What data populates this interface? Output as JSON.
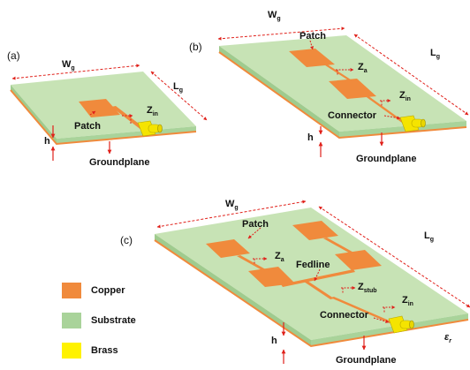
{
  "panels": {
    "a": {
      "label": "(a)",
      "wg": "W",
      "lg": "L",
      "g": "g",
      "patch": "Patch",
      "z_in": "Z",
      "in": "in",
      "h": "h",
      "groundplane": "Groundplane"
    },
    "b": {
      "label": "(b)",
      "wg": "W",
      "lg": "L",
      "g": "g",
      "patch": "Patch",
      "z_a": "Z",
      "a": "a",
      "z_in": "Z",
      "in": "in",
      "connector": "Connector",
      "h": "h",
      "groundplane": "Groundplane"
    },
    "c": {
      "label": "(c)",
      "wg": "W",
      "lg": "L",
      "g": "g",
      "patch": "Patch",
      "z_a": "Z",
      "a": "a",
      "fedline": "Fedline",
      "z_stub": "Z",
      "stub": "stub",
      "z_in": "Z",
      "in": "in",
      "connector": "Connector",
      "h": "h",
      "eps": "ε",
      "r": "r",
      "groundplane": "Groundplane"
    }
  },
  "legend": {
    "items": [
      {
        "label": "Copper",
        "color": "#f08a3c"
      },
      {
        "label": "Substrate",
        "color": "#a9d39a"
      },
      {
        "label": "Brass",
        "color": "#fff200"
      }
    ]
  },
  "colors": {
    "substrate_top": "#c7e3b5",
    "substrate_side": "#a9d39a",
    "copper": "#f08a3c",
    "brass": "#f5e400",
    "dimension": "#e0201a"
  }
}
